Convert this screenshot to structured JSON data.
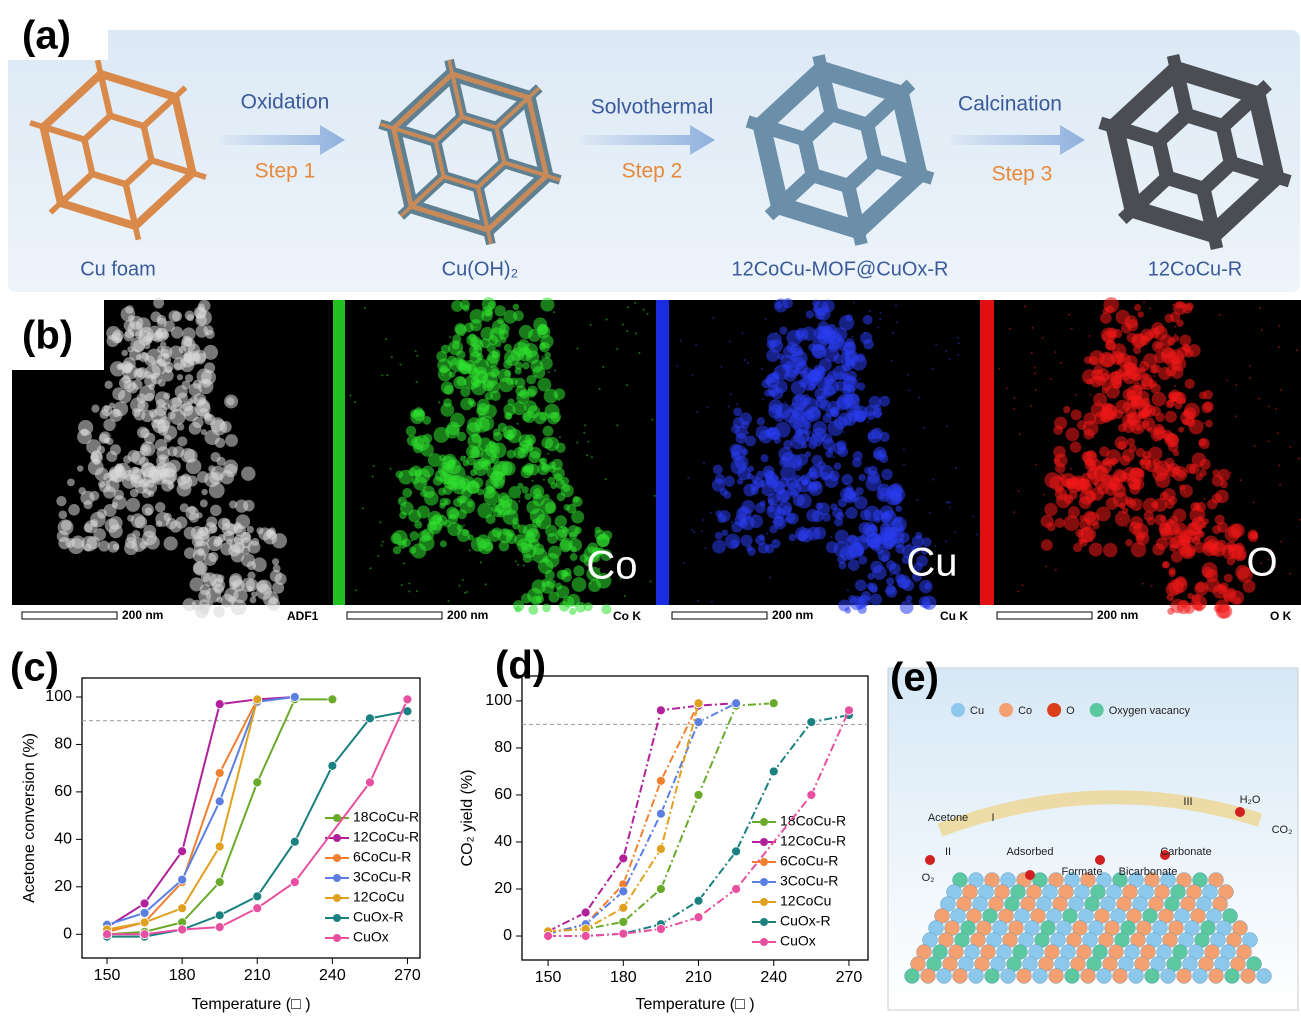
{
  "panel_a": {
    "label": "(a)",
    "steps": [
      {
        "process": "Oxidation",
        "step": "Step 1"
      },
      {
        "process": "Solvothermal",
        "step": "Step 2"
      },
      {
        "process": "Calcination",
        "step": "Step 3"
      }
    ],
    "materials": [
      "Cu foam",
      "Cu(OH)₂",
      "12CoCu-MOF@CuOx-R",
      "12CoCu-R"
    ]
  },
  "panel_b": {
    "label": "(b)",
    "maps": [
      {
        "scale": "200 nm",
        "detector": "ADF1"
      },
      {
        "element": "Co",
        "scale": "200 nm",
        "detector": "Co K"
      },
      {
        "element": "Cu",
        "scale": "200 nm",
        "detector": "Cu K"
      },
      {
        "element": "O",
        "scale": "200 nm",
        "detector": "O K"
      }
    ]
  },
  "panel_e": {
    "label": "(e)",
    "legend": [
      {
        "name": "Cu",
        "color": "#8cc8ec"
      },
      {
        "name": "Co",
        "color": "#f5a070"
      },
      {
        "name": "O",
        "color": "#d9401a"
      },
      {
        "name": "Oxygen vacancy",
        "color": "#5cc8a0"
      }
    ],
    "species": [
      "Acetone",
      "H₂O",
      "CO₂",
      "O₂"
    ],
    "stages": [
      "I",
      "II",
      "III"
    ],
    "intermediates": [
      "Adsorbed",
      "Formate",
      "Bicarbonate",
      "Carbonate"
    ]
  },
  "chart_data": [
    {
      "type": "line",
      "label": "(c)",
      "line_style": "solid",
      "x_label": "Temperature (□ )",
      "y_label": "Acetone conversion (%)",
      "xlim": [
        140,
        275
      ],
      "ylim": [
        -10,
        108
      ],
      "xticks": [
        150,
        180,
        210,
        240,
        270
      ],
      "yticks": [
        0,
        20,
        40,
        60,
        80,
        100
      ],
      "hline": 90,
      "series": [
        {
          "name": "18CoCu-R",
          "color": "#6aaa2a",
          "x": [
            150,
            165,
            180,
            195,
            210,
            225,
            240
          ],
          "values": [
            0,
            1,
            5,
            22,
            64,
            99,
            99
          ]
        },
        {
          "name": "12CoCu-R",
          "color": "#b0219a",
          "x": [
            150,
            165,
            180,
            195,
            210,
            225
          ],
          "values": [
            3,
            13,
            35,
            97,
            99,
            100
          ]
        },
        {
          "name": "6CoCu-R",
          "color": "#f08030",
          "x": [
            150,
            165,
            180,
            195,
            210
          ],
          "values": [
            1,
            5,
            22,
            68,
            99
          ]
        },
        {
          "name": "3CoCu-R",
          "color": "#5b7fe0",
          "x": [
            150,
            165,
            180,
            195,
            210,
            225
          ],
          "values": [
            4,
            9,
            23,
            56,
            98,
            100
          ]
        },
        {
          "name": "12CoCu",
          "color": "#e0a020",
          "x": [
            150,
            165,
            180,
            195,
            210
          ],
          "values": [
            2,
            5,
            11,
            37,
            99
          ]
        },
        {
          "name": "CuOx-R",
          "color": "#1a8080",
          "x": [
            150,
            165,
            180,
            195,
            210,
            225,
            240,
            255,
            270
          ],
          "values": [
            -1,
            -1,
            2,
            8,
            16,
            39,
            71,
            91,
            94
          ]
        },
        {
          "name": "CuOx",
          "color": "#e84fa0",
          "x": [
            150,
            165,
            180,
            195,
            210,
            225,
            255,
            270
          ],
          "values": [
            0,
            0,
            2,
            3,
            11,
            22,
            64,
            99
          ]
        }
      ]
    },
    {
      "type": "line",
      "label": "(d)",
      "line_style": "dashdot",
      "x_label": "Temperature (□ )",
      "y_label": "CO₂ yield (%)",
      "xlim": [
        139.6,
        277.6
      ],
      "ylim": [
        -10.2,
        110.6
      ],
      "xticks": [
        150,
        180,
        210,
        240,
        270
      ],
      "yticks": [
        0,
        20,
        40,
        60,
        80,
        100
      ],
      "hline": 90,
      "series": [
        {
          "name": "18CoCu-R",
          "color": "#6aaa2a",
          "x": [
            150,
            165,
            180,
            195,
            210,
            225,
            240
          ],
          "values": [
            2,
            3,
            6,
            20,
            60,
            98,
            99
          ]
        },
        {
          "name": "12CoCu-R",
          "color": "#b0219a",
          "x": [
            150,
            165,
            180,
            195,
            210,
            225
          ],
          "values": [
            2,
            10,
            33,
            96,
            98,
            99
          ]
        },
        {
          "name": "6CoCu-R",
          "color": "#f08030",
          "x": [
            150,
            165,
            180,
            195,
            210
          ],
          "values": [
            1,
            5,
            22,
            66,
            99
          ]
        },
        {
          "name": "3CoCu-R",
          "color": "#5b7fe0",
          "x": [
            150,
            165,
            180,
            195,
            210,
            225
          ],
          "values": [
            1,
            5,
            19,
            52,
            91,
            99
          ]
        },
        {
          "name": "12CoCu",
          "color": "#e0a020",
          "x": [
            150,
            165,
            180,
            195,
            210
          ],
          "values": [
            2,
            3,
            12,
            37,
            99
          ]
        },
        {
          "name": "CuOx-R",
          "color": "#1a8080",
          "x": [
            150,
            165,
            180,
            195,
            210,
            225,
            240,
            255,
            270
          ],
          "values": [
            0,
            0,
            1,
            5,
            15,
            36,
            70,
            91,
            94
          ]
        },
        {
          "name": "CuOx",
          "color": "#e84fa0",
          "x": [
            150,
            165,
            180,
            195,
            210,
            225,
            255,
            270
          ],
          "values": [
            0,
            0,
            1,
            3,
            8,
            20,
            60,
            96
          ]
        }
      ]
    }
  ]
}
